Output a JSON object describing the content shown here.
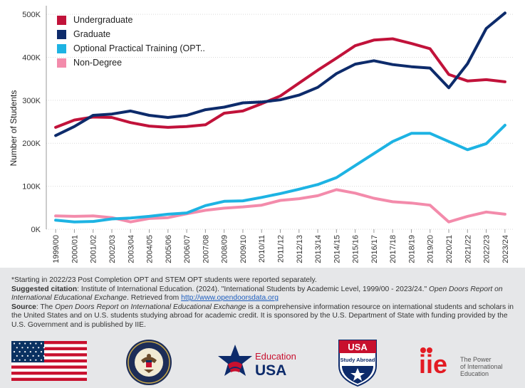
{
  "chart_data": {
    "type": "line",
    "ylabel": "Number of Students",
    "ylim": [
      0,
      520000
    ],
    "y_ticks": [
      {
        "value": 0,
        "label": "0K"
      },
      {
        "value": 100000,
        "label": "100K"
      },
      {
        "value": 200000,
        "label": "200K"
      },
      {
        "value": 300000,
        "label": "300K"
      },
      {
        "value": 400000,
        "label": "400K"
      },
      {
        "value": 500000,
        "label": "500K"
      }
    ],
    "grid": true,
    "legend_position": "top-left",
    "categories": [
      "1999/00",
      "2000/01",
      "2001/02",
      "2002/03",
      "2003/04",
      "2004/05",
      "2005/06",
      "2006/07",
      "2007/08",
      "2008/09",
      "2009/10",
      "2010/11",
      "2011/12",
      "2012/13",
      "2013/14",
      "2014/15",
      "2015/16",
      "2016/17",
      "2017/18",
      "2018/19",
      "2019/20",
      "2020/21",
      "2021/22",
      "2022/23",
      "2023/24"
    ],
    "series": [
      {
        "name": "Undergraduate",
        "color": "#c1123a",
        "values": [
          237000,
          254000,
          261000,
          260000,
          248000,
          240000,
          237000,
          239000,
          243000,
          270000,
          275000,
          292000,
          310000,
          340000,
          370000,
          398000,
          427000,
          440000,
          443000,
          432000,
          420000,
          360000,
          345000,
          348000,
          343000
        ]
      },
      {
        "name": "Graduate",
        "color": "#0d2b6b",
        "values": [
          218000,
          239000,
          265000,
          268000,
          275000,
          265000,
          260000,
          265000,
          278000,
          284000,
          294000,
          296000,
          301000,
          312000,
          330000,
          362000,
          384000,
          392000,
          383000,
          378000,
          375000,
          329000,
          385000,
          467000,
          503000
        ]
      },
      {
        "name": "Optional Practical Training (OPT..",
        "color": "#1db3e3",
        "values": [
          21000,
          17000,
          18000,
          24000,
          26000,
          30000,
          35000,
          38000,
          55000,
          65000,
          66000,
          74000,
          83000,
          93000,
          104000,
          120000,
          148000,
          176000,
          204000,
          223000,
          223000,
          204000,
          185000,
          199000,
          242000
        ]
      },
      {
        "name": "Non-Degree",
        "color": "#f38bab",
        "values": [
          31000,
          30000,
          31000,
          27000,
          17000,
          25000,
          27000,
          36000,
          44000,
          49000,
          52000,
          56000,
          67000,
          71000,
          78000,
          92000,
          84000,
          72000,
          64000,
          61000,
          56000,
          17000,
          30000,
          40000,
          35000
        ]
      }
    ]
  },
  "notes": {
    "footnote": "*Starting in 2022/23 Post Completion OPT and STEM OPT students were reported separately.",
    "citation_label": "Suggested citation",
    "citation_text": ": Institute of International Education. (2024). \"International Students by Academic Level, 1999/00 - 2023/24.\" ",
    "citation_italic": "Open Doors Report on International Educational Exchange",
    "citation_retrieved": ". Retrieved from ",
    "citation_link": "http://www.opendoorsdata.org",
    "source_label": "Source",
    "source_pre": ": The ",
    "source_italic": "Open Doors Report on International Educational Exchange",
    "source_text": " is a comprehensive information resource on international students and scholars in the United States and on U.S. students studying abroad for academic credit. It is sponsored by the U.S. Department of State with funding provided by the U.S. Government and is published by IIE."
  },
  "logos": {
    "flag": {
      "name": "us-flag",
      "red": "#c8102e",
      "blue": "#0a3161"
    },
    "state_dept": {
      "name": "department-of-state-seal"
    },
    "education_usa": {
      "line1": "Education",
      "line2": "USA",
      "red": "#c8102e",
      "navy": "#0d2b6b"
    },
    "usa_study_abroad": {
      "top": "USA",
      "bottom": "Study Abroad"
    },
    "iie": {
      "mark": "iie",
      "line1": "The Power",
      "line2": "of International",
      "line3": "Education",
      "red": "#e31b23"
    }
  }
}
